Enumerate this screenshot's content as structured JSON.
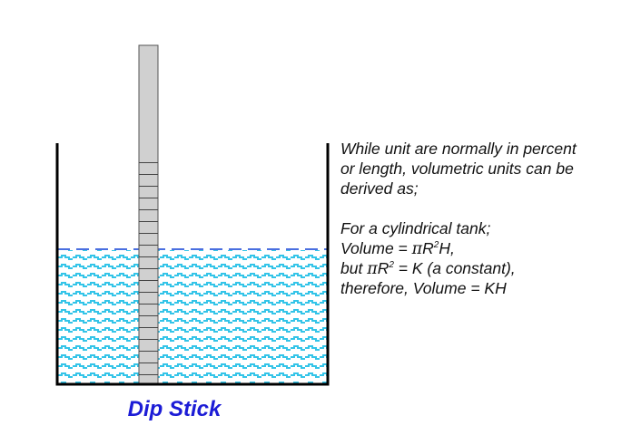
{
  "diagram": {
    "caption": "Dip Stick",
    "colors": {
      "liquid_wave": "#33c4e8",
      "liquid_background": "#ffffff",
      "liquid_surface_dash": "#4a6fe0",
      "stick_fill": "#d0d0d0",
      "tank_wall": "#000000",
      "caption_text": "#1c1cd6"
    },
    "notes": {
      "intro": [
        "While unit are normally in percent",
        "or length, volumetric units can be",
        "derived as;"
      ],
      "formula_heading": "For a cylindrical tank;",
      "volume_formula": {
        "prefix": "Volume = ",
        "pi": "π",
        "r": "R",
        "exponent": "2",
        "suffix": "H,"
      },
      "constant_line": {
        "prefix": "but ",
        "pi": "π",
        "r": "R",
        "exponent": "2",
        "suffix": " = K  (a constant),"
      },
      "conclusion": "therefore, Volume = KH"
    }
  }
}
